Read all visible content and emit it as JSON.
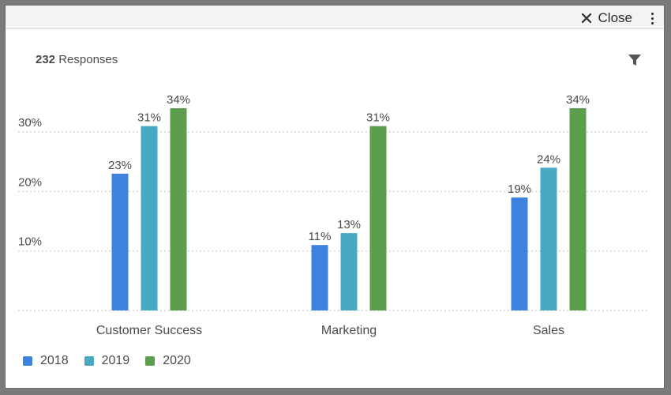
{
  "header": {
    "close_label": "Close"
  },
  "widget": {
    "response_count": "232",
    "response_label": "Responses"
  },
  "icons": {
    "close": "close-icon",
    "more": "more-vertical-icon",
    "filter": "filter-icon"
  },
  "colors": {
    "2018": "#3e82e0",
    "2019": "#47a9c2",
    "2020": "#5a9e4e"
  },
  "chart_data": {
    "type": "bar",
    "categories": [
      "Customer Success",
      "Marketing",
      "Sales"
    ],
    "series": [
      {
        "name": "2018",
        "values": [
          23,
          11,
          19
        ],
        "labels": [
          "23%",
          "11%",
          "19%"
        ]
      },
      {
        "name": "2019",
        "values": [
          31,
          13,
          24
        ],
        "labels": [
          "31%",
          "13%",
          "24%"
        ]
      },
      {
        "name": "2020",
        "values": [
          34,
          31,
          34
        ],
        "labels": [
          "34%",
          "31%",
          "34%"
        ]
      }
    ],
    "yticks": [
      10,
      20,
      30
    ],
    "ytick_labels": [
      "10%",
      "20%",
      "30%"
    ],
    "ylim": [
      0,
      34
    ],
    "grid": true,
    "legend": "bottom-left"
  }
}
